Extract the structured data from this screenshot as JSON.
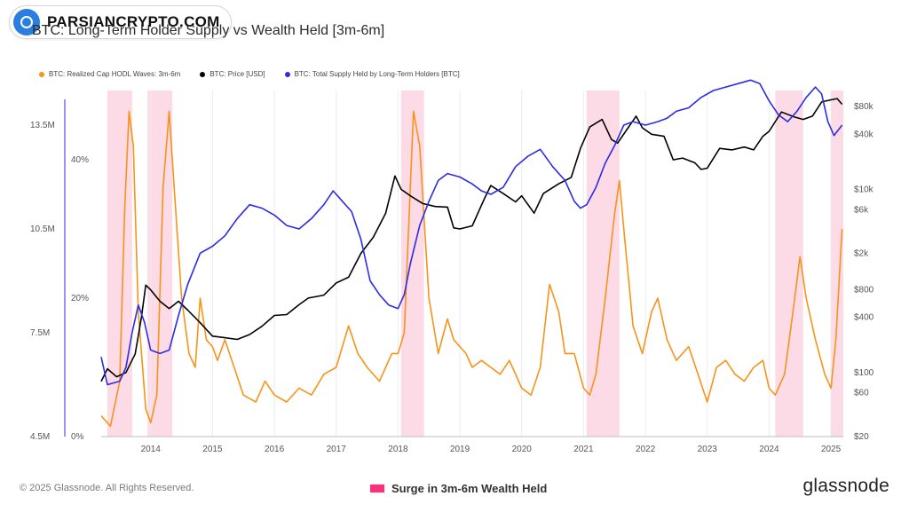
{
  "brand": {
    "text": "PARSIANCRYPTO.COM"
  },
  "chart_data": {
    "type": "line",
    "title": "BTC: Long-Term Holder Supply vs Wealth Held [3m-6m]",
    "colors": {
      "hodl": "#f7931a",
      "price": "#000000",
      "supply": "#2b2be8",
      "surge": "#fbd3e2",
      "surge_legend": "#ff2f7a"
    },
    "x_ticks": [
      "2014",
      "2015",
      "2016",
      "2017",
      "2018",
      "2019",
      "2020",
      "2021",
      "2022",
      "2023",
      "2024",
      "2025"
    ],
    "xlim": [
      2013.2,
      2025.2
    ],
    "axes": {
      "left_supply": {
        "ticks": [
          "4.5M",
          "7.5M",
          "10.5M",
          "13.5M"
        ],
        "values": [
          4.5,
          7.5,
          10.5,
          13.5
        ],
        "ylim": [
          4.5,
          14.5
        ],
        "unit": "M BTC"
      },
      "left_pct": {
        "ticks": [
          "0%",
          "20%",
          "40%"
        ],
        "values": [
          0,
          20,
          40
        ],
        "ylim": [
          0,
          40
        ]
      },
      "right_price": {
        "ticks": [
          "$20",
          "$60",
          "$100",
          "$400",
          "$800",
          "$2k",
          "$6k",
          "$10k",
          "$40k",
          "$80k"
        ],
        "values": [
          20,
          60,
          100,
          400,
          800,
          2000,
          6000,
          10000,
          40000,
          80000
        ],
        "scale": "log"
      }
    },
    "series": [
      {
        "name": "BTC: Realized Cap HODL Waves: 3m-6m",
        "axis": "left_pct",
        "color": "#f7931a",
        "points": [
          [
            2013.2,
            3
          ],
          [
            2013.35,
            1.5
          ],
          [
            2013.5,
            8
          ],
          [
            2013.58,
            33
          ],
          [
            2013.65,
            47
          ],
          [
            2013.72,
            42
          ],
          [
            2013.8,
            18
          ],
          [
            2013.92,
            4
          ],
          [
            2014.0,
            2
          ],
          [
            2014.1,
            6
          ],
          [
            2014.2,
            36
          ],
          [
            2014.3,
            47
          ],
          [
            2014.38,
            36
          ],
          [
            2014.5,
            20
          ],
          [
            2014.62,
            12
          ],
          [
            2014.72,
            10
          ],
          [
            2014.8,
            20
          ],
          [
            2014.9,
            14
          ],
          [
            2015.0,
            13
          ],
          [
            2015.08,
            11
          ],
          [
            2015.2,
            14
          ],
          [
            2015.35,
            10
          ],
          [
            2015.5,
            6
          ],
          [
            2015.7,
            5
          ],
          [
            2015.85,
            8
          ],
          [
            2016.0,
            6
          ],
          [
            2016.2,
            5
          ],
          [
            2016.4,
            7
          ],
          [
            2016.6,
            6
          ],
          [
            2016.8,
            9
          ],
          [
            2017.0,
            10
          ],
          [
            2017.2,
            16
          ],
          [
            2017.35,
            12
          ],
          [
            2017.5,
            10
          ],
          [
            2017.7,
            8
          ],
          [
            2017.9,
            12
          ],
          [
            2018.0,
            12
          ],
          [
            2018.1,
            15
          ],
          [
            2018.25,
            47
          ],
          [
            2018.35,
            42
          ],
          [
            2018.5,
            20
          ],
          [
            2018.65,
            12
          ],
          [
            2018.8,
            17
          ],
          [
            2018.9,
            14
          ],
          [
            2019.0,
            13
          ],
          [
            2019.1,
            12
          ],
          [
            2019.2,
            10
          ],
          [
            2019.35,
            11
          ],
          [
            2019.5,
            10
          ],
          [
            2019.65,
            9
          ],
          [
            2019.8,
            11
          ],
          [
            2019.9,
            9
          ],
          [
            2020.0,
            7
          ],
          [
            2020.15,
            6
          ],
          [
            2020.3,
            10
          ],
          [
            2020.45,
            22
          ],
          [
            2020.6,
            18
          ],
          [
            2020.7,
            12
          ],
          [
            2020.85,
            12
          ],
          [
            2021.0,
            7
          ],
          [
            2021.1,
            6
          ],
          [
            2021.2,
            9
          ],
          [
            2021.35,
            20
          ],
          [
            2021.5,
            32
          ],
          [
            2021.58,
            37
          ],
          [
            2021.65,
            30
          ],
          [
            2021.8,
            16
          ],
          [
            2021.95,
            12
          ],
          [
            2022.1,
            18
          ],
          [
            2022.2,
            20
          ],
          [
            2022.35,
            14
          ],
          [
            2022.5,
            11
          ],
          [
            2022.7,
            13
          ],
          [
            2022.85,
            9
          ],
          [
            2023.0,
            5
          ],
          [
            2023.15,
            10
          ],
          [
            2023.3,
            11
          ],
          [
            2023.45,
            9
          ],
          [
            2023.6,
            8
          ],
          [
            2023.75,
            10
          ],
          [
            2023.9,
            11
          ],
          [
            2024.0,
            7
          ],
          [
            2024.1,
            6
          ],
          [
            2024.25,
            9
          ],
          [
            2024.4,
            19
          ],
          [
            2024.5,
            26
          ],
          [
            2024.6,
            20
          ],
          [
            2024.75,
            14
          ],
          [
            2024.9,
            9
          ],
          [
            2025.0,
            7
          ],
          [
            2025.08,
            14
          ],
          [
            2025.18,
            30
          ]
        ]
      },
      {
        "name": "BTC: Price [USD]",
        "axis": "right_price",
        "color": "#000000",
        "points": [
          [
            2013.2,
            80
          ],
          [
            2013.3,
            110
          ],
          [
            2013.45,
            90
          ],
          [
            2013.6,
            100
          ],
          [
            2013.75,
            160
          ],
          [
            2013.85,
            400
          ],
          [
            2013.92,
            900
          ],
          [
            2014.0,
            800
          ],
          [
            2014.15,
            600
          ],
          [
            2014.3,
            500
          ],
          [
            2014.45,
            600
          ],
          [
            2014.6,
            480
          ],
          [
            2014.8,
            350
          ],
          [
            2015.0,
            250
          ],
          [
            2015.2,
            240
          ],
          [
            2015.4,
            230
          ],
          [
            2015.6,
            260
          ],
          [
            2015.8,
            320
          ],
          [
            2016.0,
            420
          ],
          [
            2016.2,
            430
          ],
          [
            2016.4,
            550
          ],
          [
            2016.55,
            650
          ],
          [
            2016.8,
            700
          ],
          [
            2017.0,
            950
          ],
          [
            2017.2,
            1100
          ],
          [
            2017.4,
            2000
          ],
          [
            2017.6,
            3000
          ],
          [
            2017.8,
            5500
          ],
          [
            2017.95,
            14000
          ],
          [
            2018.05,
            10000
          ],
          [
            2018.2,
            8500
          ],
          [
            2018.4,
            7000
          ],
          [
            2018.6,
            6500
          ],
          [
            2018.8,
            6400
          ],
          [
            2018.9,
            3800
          ],
          [
            2019.0,
            3700
          ],
          [
            2019.2,
            4000
          ],
          [
            2019.4,
            8000
          ],
          [
            2019.5,
            11000
          ],
          [
            2019.7,
            9000
          ],
          [
            2019.9,
            7300
          ],
          [
            2020.0,
            8500
          ],
          [
            2020.2,
            5500
          ],
          [
            2020.35,
            9000
          ],
          [
            2020.6,
            11500
          ],
          [
            2020.8,
            13500
          ],
          [
            2020.95,
            28000
          ],
          [
            2021.1,
            48000
          ],
          [
            2021.3,
            58000
          ],
          [
            2021.45,
            35000
          ],
          [
            2021.55,
            32000
          ],
          [
            2021.7,
            45000
          ],
          [
            2021.85,
            63000
          ],
          [
            2021.95,
            47000
          ],
          [
            2022.1,
            40000
          ],
          [
            2022.3,
            38000
          ],
          [
            2022.45,
            21000
          ],
          [
            2022.6,
            22000
          ],
          [
            2022.8,
            19500
          ],
          [
            2022.9,
            16500
          ],
          [
            2023.0,
            17000
          ],
          [
            2023.2,
            28000
          ],
          [
            2023.4,
            27000
          ],
          [
            2023.6,
            29000
          ],
          [
            2023.75,
            27000
          ],
          [
            2023.9,
            38000
          ],
          [
            2024.0,
            43000
          ],
          [
            2024.2,
            70000
          ],
          [
            2024.4,
            62000
          ],
          [
            2024.55,
            58000
          ],
          [
            2024.7,
            63000
          ],
          [
            2024.85,
            90000
          ],
          [
            2025.0,
            95000
          ],
          [
            2025.1,
            98000
          ],
          [
            2025.18,
            85000
          ]
        ]
      },
      {
        "name": "BTC: Total Supply Held by Long-Term Holders [BTC]",
        "axis": "left_supply",
        "color": "#2b2be8",
        "points": [
          [
            2013.2,
            6.8
          ],
          [
            2013.3,
            6.0
          ],
          [
            2013.5,
            6.1
          ],
          [
            2013.6,
            6.5
          ],
          [
            2013.7,
            7.5
          ],
          [
            2013.8,
            8.3
          ],
          [
            2013.9,
            7.8
          ],
          [
            2014.0,
            7.0
          ],
          [
            2014.15,
            6.9
          ],
          [
            2014.3,
            7.0
          ],
          [
            2014.45,
            8.0
          ],
          [
            2014.6,
            8.9
          ],
          [
            2014.8,
            9.8
          ],
          [
            2015.0,
            10.0
          ],
          [
            2015.2,
            10.3
          ],
          [
            2015.4,
            10.8
          ],
          [
            2015.6,
            11.2
          ],
          [
            2015.8,
            11.1
          ],
          [
            2016.0,
            10.9
          ],
          [
            2016.2,
            10.6
          ],
          [
            2016.4,
            10.5
          ],
          [
            2016.6,
            10.8
          ],
          [
            2016.8,
            11.2
          ],
          [
            2016.95,
            11.6
          ],
          [
            2017.1,
            11.3
          ],
          [
            2017.25,
            11.0
          ],
          [
            2017.4,
            10.2
          ],
          [
            2017.55,
            9.0
          ],
          [
            2017.7,
            8.6
          ],
          [
            2017.85,
            8.3
          ],
          [
            2018.0,
            8.2
          ],
          [
            2018.1,
            8.6
          ],
          [
            2018.2,
            9.5
          ],
          [
            2018.35,
            10.6
          ],
          [
            2018.5,
            11.3
          ],
          [
            2018.65,
            11.9
          ],
          [
            2018.8,
            12.1
          ],
          [
            2019.0,
            12.0
          ],
          [
            2019.2,
            11.8
          ],
          [
            2019.35,
            11.6
          ],
          [
            2019.5,
            11.5
          ],
          [
            2019.7,
            11.7
          ],
          [
            2019.9,
            12.3
          ],
          [
            2020.1,
            12.6
          ],
          [
            2020.3,
            12.8
          ],
          [
            2020.5,
            12.3
          ],
          [
            2020.7,
            11.9
          ],
          [
            2020.85,
            11.3
          ],
          [
            2020.95,
            11.1
          ],
          [
            2021.05,
            11.2
          ],
          [
            2021.2,
            11.7
          ],
          [
            2021.35,
            12.4
          ],
          [
            2021.5,
            12.9
          ],
          [
            2021.65,
            13.5
          ],
          [
            2021.8,
            13.6
          ],
          [
            2022.0,
            13.5
          ],
          [
            2022.2,
            13.6
          ],
          [
            2022.35,
            13.7
          ],
          [
            2022.5,
            13.9
          ],
          [
            2022.7,
            14.0
          ],
          [
            2022.9,
            14.3
          ],
          [
            2023.1,
            14.5
          ],
          [
            2023.3,
            14.6
          ],
          [
            2023.5,
            14.7
          ],
          [
            2023.7,
            14.8
          ],
          [
            2023.85,
            14.7
          ],
          [
            2024.0,
            14.2
          ],
          [
            2024.15,
            13.8
          ],
          [
            2024.3,
            13.6
          ],
          [
            2024.45,
            13.9
          ],
          [
            2024.6,
            14.3
          ],
          [
            2024.75,
            14.6
          ],
          [
            2024.85,
            14.4
          ],
          [
            2024.95,
            13.6
          ],
          [
            2025.05,
            13.2
          ],
          [
            2025.18,
            13.5
          ]
        ]
      }
    ],
    "surge_periods": [
      [
        2013.3,
        2013.7
      ],
      [
        2013.95,
        2014.35
      ],
      [
        2018.05,
        2018.42
      ],
      [
        2021.05,
        2021.58
      ],
      [
        2024.1,
        2024.55
      ],
      [
        2025.0,
        2025.2
      ]
    ],
    "legend_entries": [
      "BTC: Realized Cap HODL Waves: 3m-6m",
      "BTC: Price [USD]",
      "BTC: Total Supply Held by Long-Term Holders [BTC]"
    ],
    "annotation": "Surge in 3m-6m Wealth Held"
  },
  "footer": {
    "copyright": "© 2025 Glassnode. All Rights Reserved.",
    "surge_label": "Surge in 3m-6m Wealth Held",
    "logo": "glassnode"
  }
}
